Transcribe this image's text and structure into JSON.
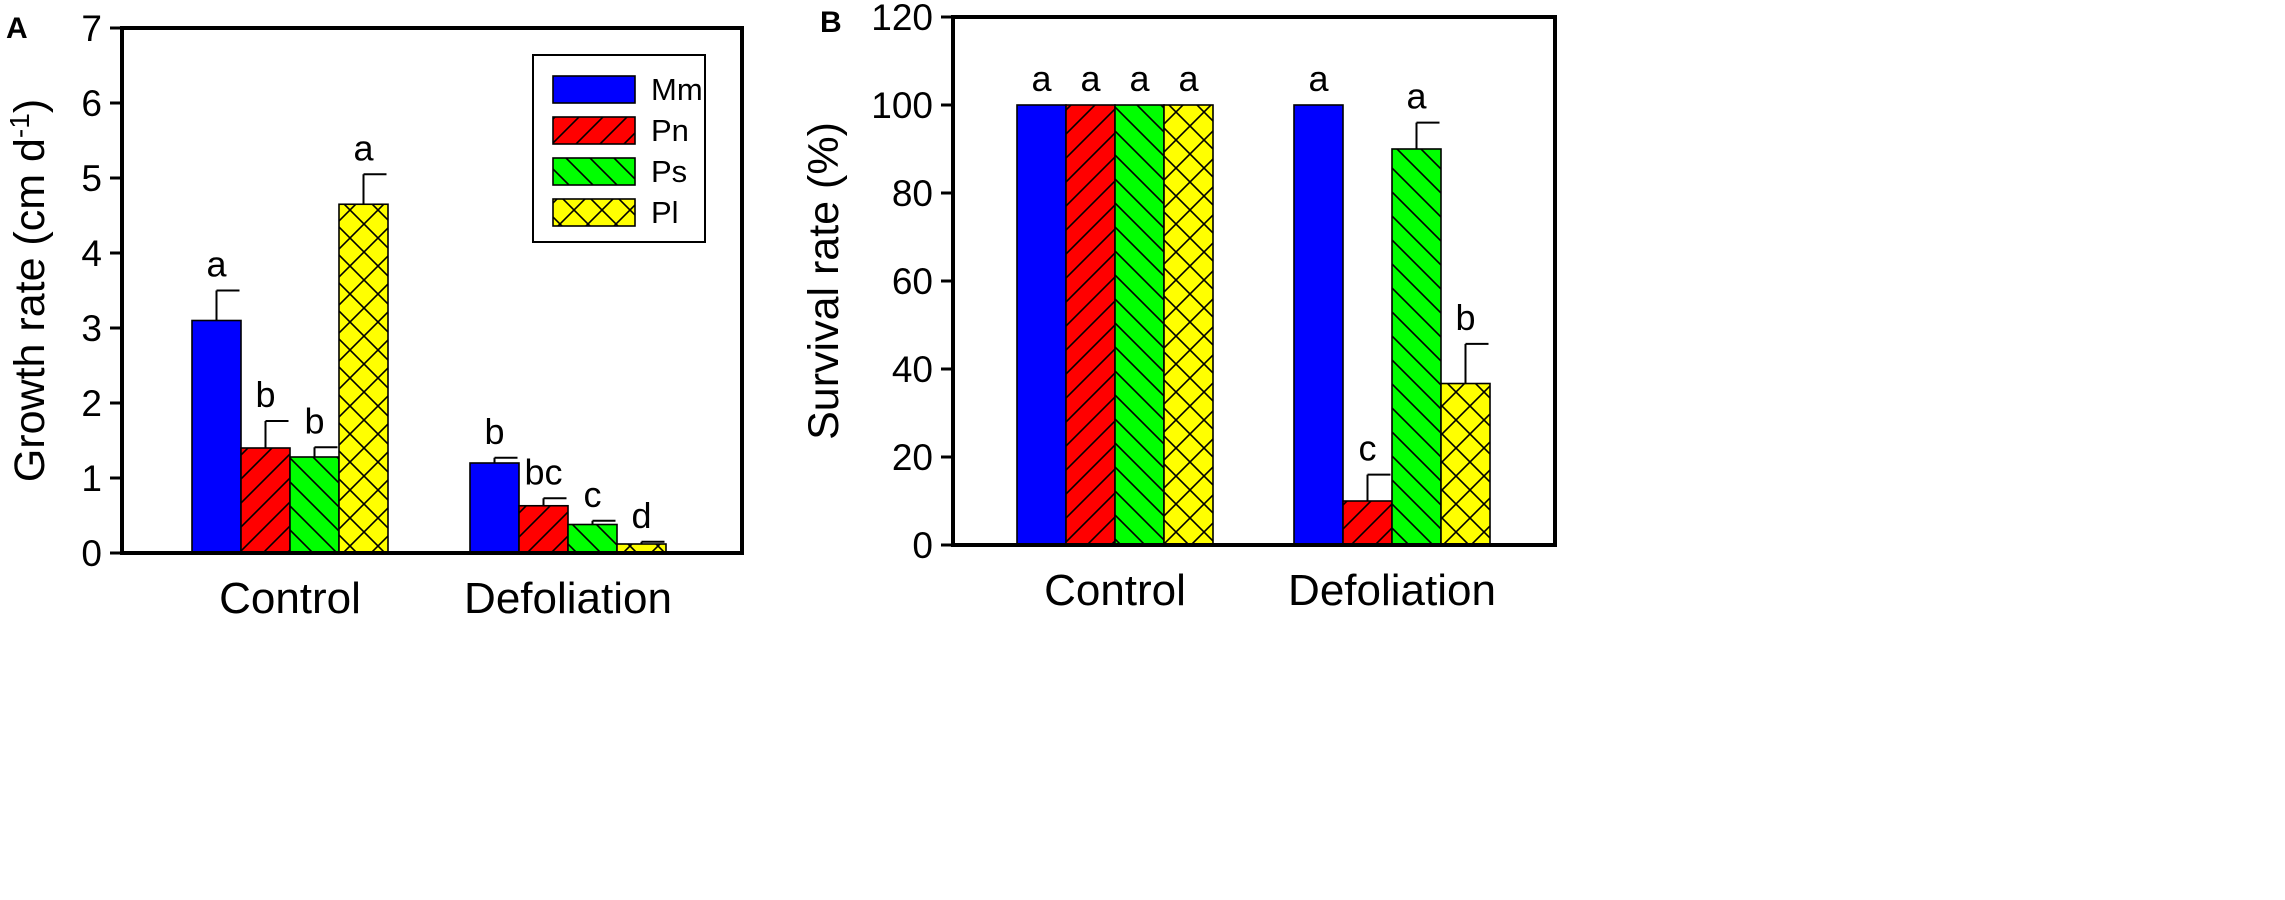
{
  "chart_data": [
    {
      "panel": "A",
      "type": "bar",
      "ylabel": "Growth rate (cm d",
      "ylabel_sup": "-1",
      "ylabel_end": ")",
      "ylim": [
        0,
        7
      ],
      "yticks": [
        "0",
        "1",
        "2",
        "3",
        "4",
        "5",
        "6",
        "7"
      ],
      "categories": [
        "Control",
        "Defoliation"
      ],
      "legend_position": "top-right",
      "series": [
        {
          "name": "Mm",
          "values": [
            3.1,
            1.2
          ],
          "errors": [
            0.4,
            0.07
          ],
          "letters": [
            "a",
            "b"
          ],
          "color": "#0000FF",
          "pattern": "none"
        },
        {
          "name": "Pn",
          "values": [
            1.4,
            0.63
          ],
          "errors": [
            0.36,
            0.1
          ],
          "letters": [
            "b",
            "bc"
          ],
          "color": "#FF0000",
          "pattern": "diag-up"
        },
        {
          "name": "Ps",
          "values": [
            1.28,
            0.38
          ],
          "errors": [
            0.13,
            0.05
          ],
          "letters": [
            "b",
            "c"
          ],
          "color": "#00FF00",
          "pattern": "diag-down"
        },
        {
          "name": "Pl",
          "values": [
            4.65,
            0.12
          ],
          "errors": [
            0.4,
            0.03
          ],
          "letters": [
            "a",
            "d"
          ],
          "color": "#FFFF00",
          "pattern": "cross"
        }
      ]
    },
    {
      "panel": "B",
      "type": "bar",
      "ylabel": "Survival rate (%)",
      "ylim": [
        0,
        120
      ],
      "yticks": [
        "0",
        "20",
        "40",
        "60",
        "80",
        "100",
        "120"
      ],
      "categories": [
        "Control",
        "Defoliation"
      ],
      "series": [
        {
          "name": "Mm",
          "values": [
            100,
            100
          ],
          "errors": [
            0,
            0
          ],
          "letters": [
            "a",
            "a"
          ],
          "color": "#0000FF",
          "pattern": "none"
        },
        {
          "name": "Pn",
          "values": [
            100,
            10
          ],
          "errors": [
            0,
            6
          ],
          "letters": [
            "a",
            "c"
          ],
          "color": "#FF0000",
          "pattern": "diag-up"
        },
        {
          "name": "Ps",
          "values": [
            100,
            90
          ],
          "errors": [
            0,
            6
          ],
          "letters": [
            "a",
            "a"
          ],
          "color": "#00FF00",
          "pattern": "diag-down"
        },
        {
          "name": "Pl",
          "values": [
            100,
            36.7
          ],
          "errors": [
            0,
            9
          ],
          "letters": [
            "a",
            "b"
          ],
          "color": "#FFFF00",
          "pattern": "cross"
        }
      ]
    }
  ]
}
